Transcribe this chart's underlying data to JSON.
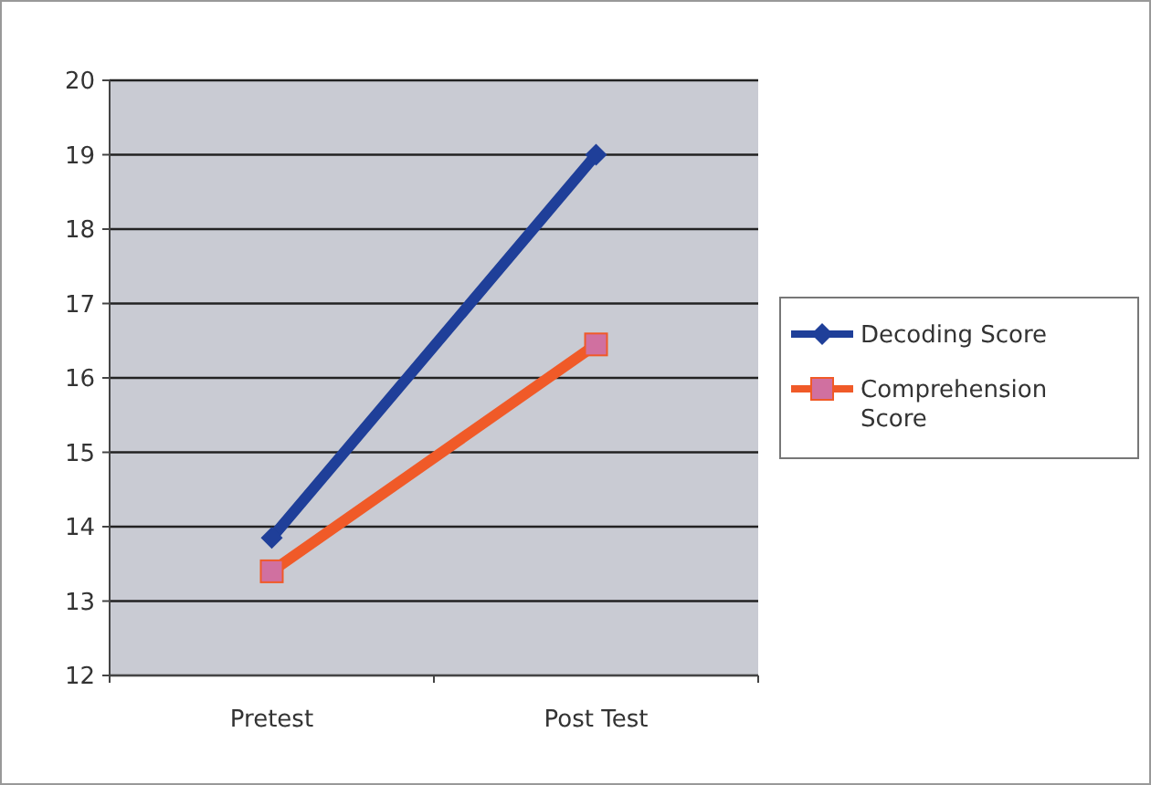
{
  "chart_data": {
    "type": "line",
    "categories": [
      "Pretest",
      "Post Test"
    ],
    "series": [
      {
        "name": "Decoding Score",
        "color": "#1f3f99",
        "values": [
          13.85,
          19.0
        ],
        "marker": "diamond"
      },
      {
        "name": "Comprehension Score",
        "color": "#f05a28",
        "values": [
          13.4,
          16.45
        ],
        "marker": "square"
      }
    ],
    "ylim": [
      12,
      20
    ],
    "yticks": [
      12,
      13,
      14,
      15,
      16,
      17,
      18,
      19,
      20
    ],
    "grid": "y",
    "legend": "right",
    "line_style": "solid"
  }
}
